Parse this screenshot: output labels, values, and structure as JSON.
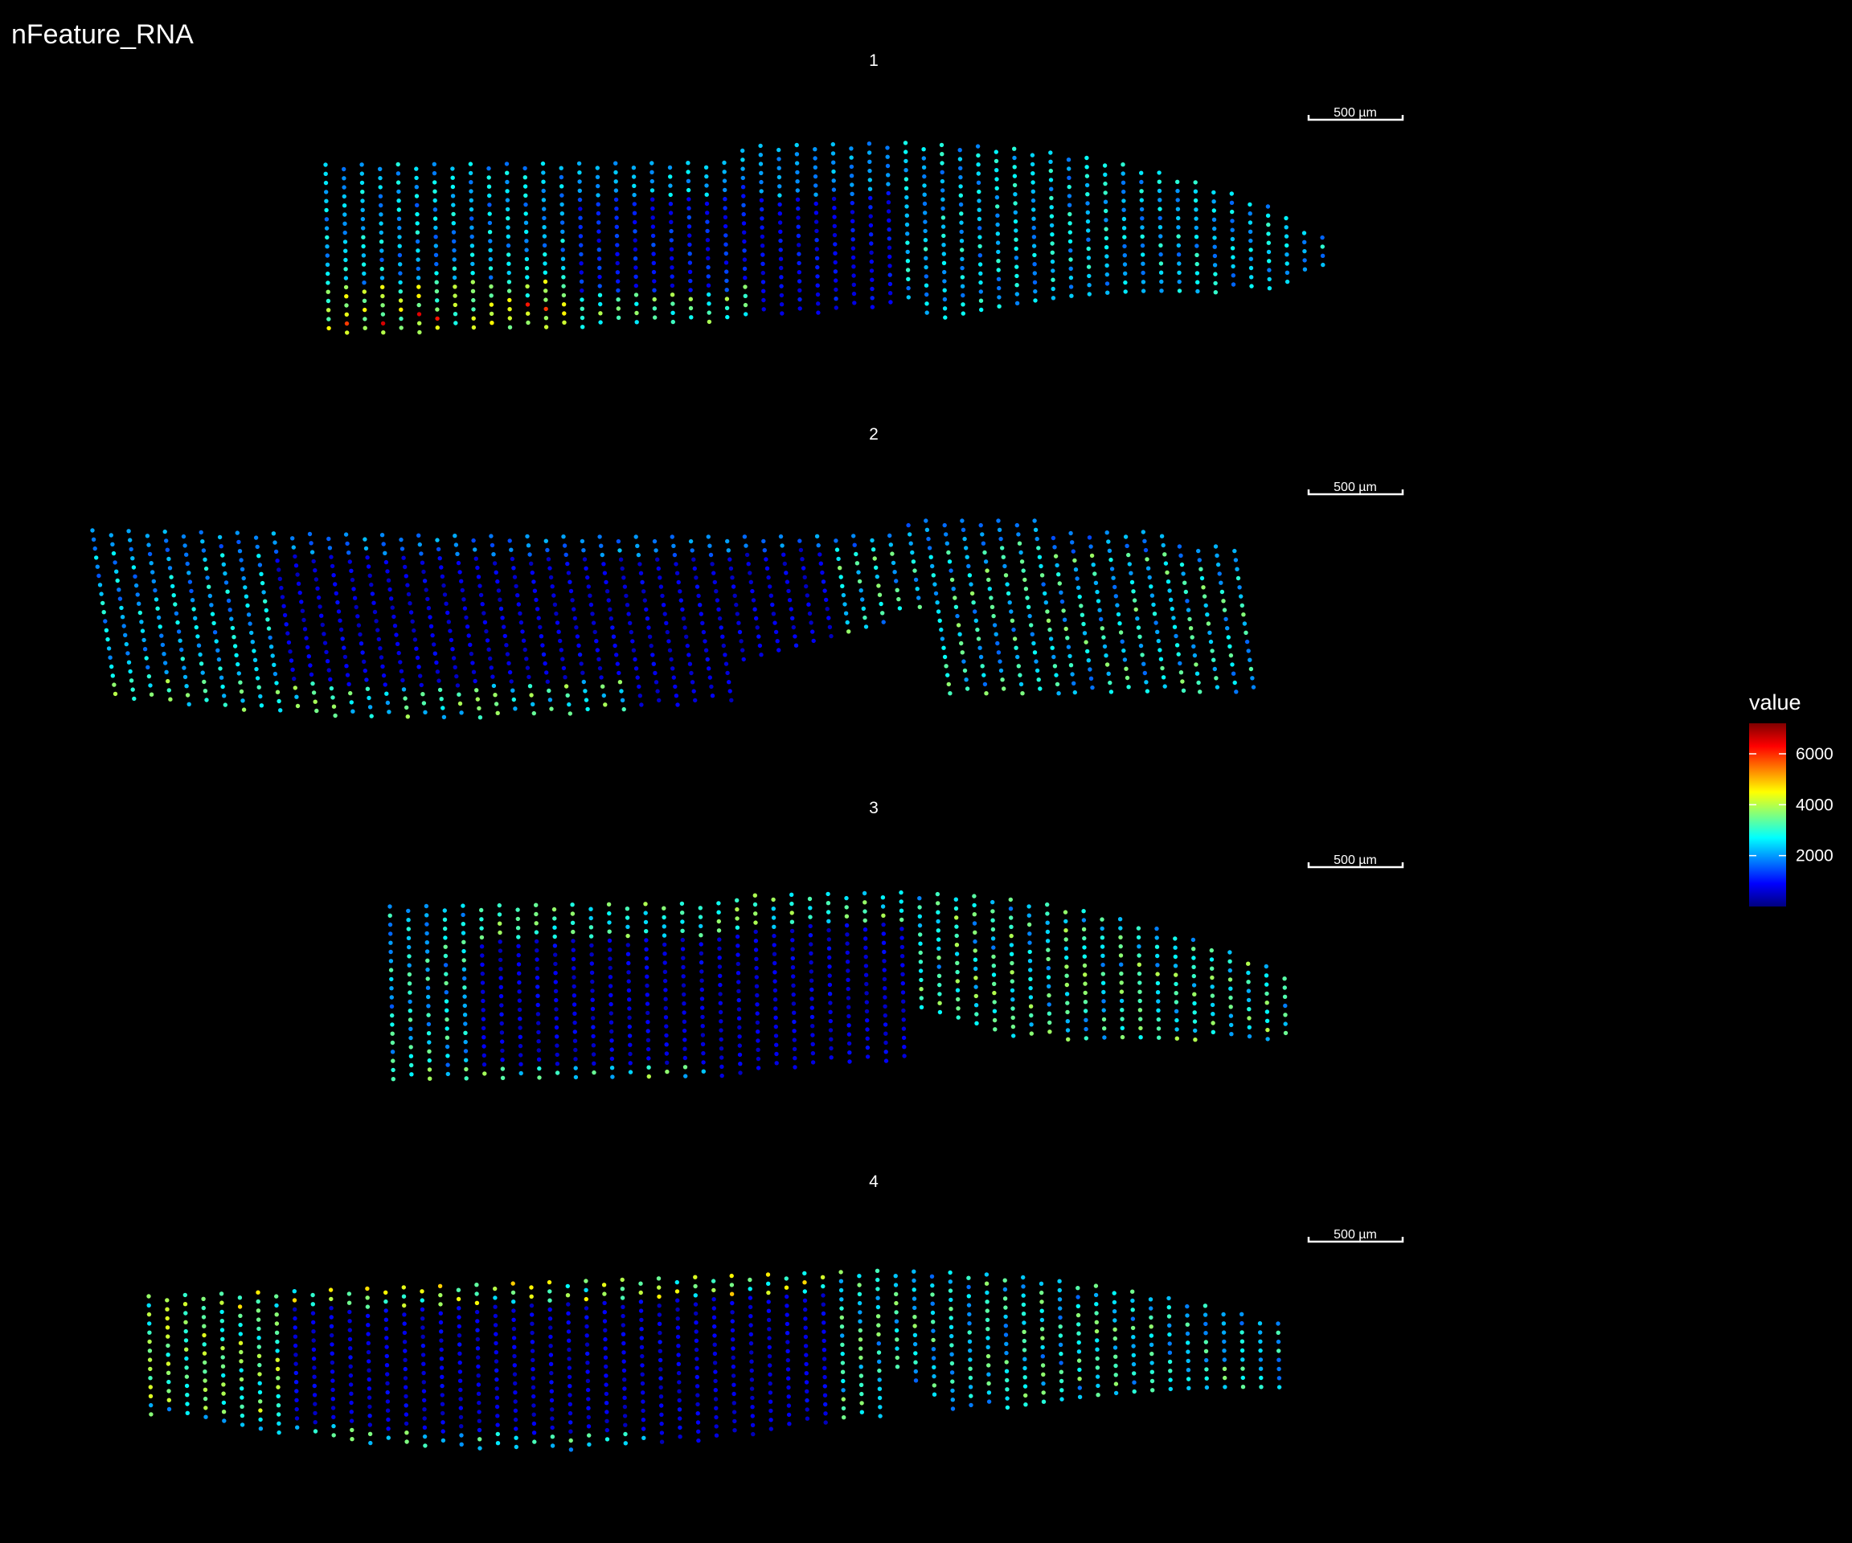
{
  "chart_data": {
    "type": "scatter",
    "title": "nFeature_RNA",
    "subtitle": "",
    "xlabel": "",
    "ylabel": "",
    "grid": false,
    "background": "#000000",
    "colormap": [
      "#00007F",
      "#0000FF",
      "#007FFF",
      "#00FFFF",
      "#7FFF7F",
      "#FFFF00",
      "#FF7F00",
      "#FF0000",
      "#7F0000"
    ],
    "legend": {
      "title": "value",
      "placement": "right",
      "ticks": [
        2000,
        4000,
        6000
      ],
      "range": [
        0,
        7200
      ]
    },
    "panels": [
      {
        "label": "1",
        "scale_bar": "500 µm"
      },
      {
        "label": "2",
        "scale_bar": "500 µm"
      },
      {
        "label": "3",
        "scale_bar": "500 µm"
      },
      {
        "label": "4",
        "scale_bar": "500 µm"
      }
    ]
  }
}
